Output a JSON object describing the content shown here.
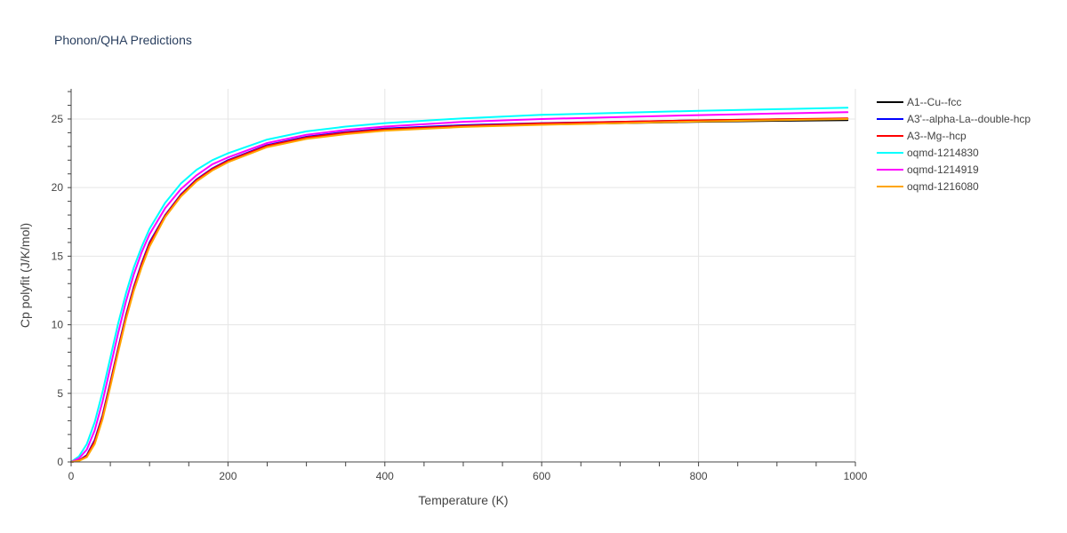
{
  "chart_data": {
    "type": "line",
    "title": "Phonon/QHA Predictions",
    "xlabel": "Temperature (K)",
    "ylabel": "Cp polyfit (J/K/mol)",
    "xlim": [
      0,
      1000
    ],
    "ylim": [
      0,
      27.2
    ],
    "xticks": [
      0,
      200,
      400,
      600,
      800,
      1000
    ],
    "xtick_labels": [
      "0",
      "200",
      "400",
      "600",
      "800",
      "1000"
    ],
    "yticks": [
      0,
      5,
      10,
      15,
      20,
      25
    ],
    "ytick_labels": [
      "0",
      "5",
      "10",
      "15",
      "20",
      "25"
    ],
    "grid": true,
    "legend_position": "right",
    "x": [
      0,
      10,
      20,
      30,
      40,
      50,
      60,
      70,
      80,
      90,
      100,
      120,
      140,
      160,
      180,
      200,
      250,
      300,
      350,
      400,
      500,
      600,
      700,
      800,
      900,
      990
    ],
    "series": [
      {
        "name": "A1--Cu--fcc",
        "color": "#000000",
        "values": [
          0,
          0.1,
          0.4,
          1.4,
          3.2,
          5.6,
          8.1,
          10.5,
          12.6,
          14.3,
          15.8,
          17.9,
          19.4,
          20.5,
          21.3,
          21.9,
          23.0,
          23.6,
          23.95,
          24.2,
          24.45,
          24.6,
          24.7,
          24.8,
          24.87,
          24.92
        ]
      },
      {
        "name": "A3'--alpha-La--double-hcp",
        "color": "#0000ff",
        "values": [
          0,
          0.1,
          0.5,
          1.6,
          3.4,
          5.8,
          8.3,
          10.7,
          12.8,
          14.5,
          16.0,
          18.0,
          19.5,
          20.6,
          21.4,
          22.0,
          23.1,
          23.7,
          24.05,
          24.3,
          24.55,
          24.7,
          24.8,
          24.9,
          24.97,
          25.02
        ]
      },
      {
        "name": "A3--Mg--hcp",
        "color": "#ff0000",
        "values": [
          0,
          0.1,
          0.45,
          1.5,
          3.3,
          5.7,
          8.2,
          10.6,
          12.7,
          14.4,
          15.9,
          17.95,
          19.45,
          20.55,
          21.35,
          21.95,
          23.05,
          23.65,
          24.0,
          24.25,
          24.5,
          24.68,
          24.8,
          24.9,
          24.98,
          25.05
        ]
      },
      {
        "name": "oqmd-1214830",
        "color": "#00ffff",
        "values": [
          0,
          0.4,
          1.3,
          2.9,
          5.1,
          7.6,
          10.1,
          12.3,
          14.2,
          15.7,
          17.0,
          18.9,
          20.3,
          21.3,
          22.0,
          22.5,
          23.5,
          24.1,
          24.45,
          24.7,
          25.05,
          25.3,
          25.45,
          25.6,
          25.72,
          25.82
        ]
      },
      {
        "name": "oqmd-1214919",
        "color": "#ff00ff",
        "values": [
          0,
          0.25,
          0.9,
          2.3,
          4.4,
          6.9,
          9.4,
          11.7,
          13.7,
          15.3,
          16.6,
          18.5,
          19.9,
          20.9,
          21.7,
          22.2,
          23.25,
          23.85,
          24.2,
          24.45,
          24.8,
          25.0,
          25.15,
          25.28,
          25.4,
          25.5
        ]
      },
      {
        "name": "oqmd-1216080",
        "color": "#ffa500",
        "values": [
          0,
          0.08,
          0.35,
          1.3,
          3.1,
          5.5,
          8.0,
          10.4,
          12.5,
          14.2,
          15.7,
          17.85,
          19.35,
          20.45,
          21.25,
          21.85,
          22.95,
          23.55,
          23.9,
          24.15,
          24.42,
          24.58,
          24.7,
          24.82,
          24.92,
          25.0
        ]
      }
    ]
  }
}
